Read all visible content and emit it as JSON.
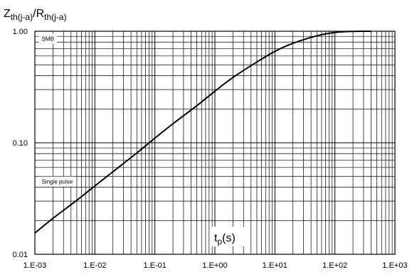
{
  "chart_data": {
    "type": "line",
    "title": "",
    "ylabel": {
      "main1": "Z",
      "sub1": "th(j-a)",
      "sep": "/",
      "main2": "R",
      "sub2": "th(j-a)"
    },
    "xlabel": {
      "main": "t",
      "sub": "p",
      "unit": "(s)"
    },
    "x_scale": "log",
    "y_scale": "log",
    "xlim": [
      0.001,
      1000
    ],
    "ylim": [
      0.01,
      1.0
    ],
    "x_ticks": [
      0.001,
      0.01,
      0.1,
      1,
      10,
      100,
      1000
    ],
    "x_tick_labels": [
      "1.E-03",
      "1.E-02",
      "1.E-01",
      "1.E+00",
      "1.E+01",
      "1.E+02",
      "1.E+03"
    ],
    "y_ticks": [
      0.01,
      0.1,
      1.0
    ],
    "y_tick_labels": [
      "0.01",
      "0.10",
      "1.00"
    ],
    "grid": true,
    "annotations": [
      {
        "text": "SMB",
        "x": 0.0013,
        "y": 0.82
      },
      {
        "text": "Single pulse",
        "x": 0.0013,
        "y": 0.043
      }
    ],
    "series": [
      {
        "x": [
          0.001,
          0.002,
          0.005,
          0.01,
          0.02,
          0.05,
          0.1,
          0.2,
          0.5,
          1,
          2,
          5,
          10,
          20,
          50,
          100,
          200,
          400
        ],
        "values": [
          0.0155,
          0.021,
          0.0305,
          0.041,
          0.055,
          0.081,
          0.11,
          0.148,
          0.215,
          0.29,
          0.385,
          0.53,
          0.66,
          0.78,
          0.91,
          0.975,
          0.997,
          1.0
        ]
      }
    ]
  }
}
